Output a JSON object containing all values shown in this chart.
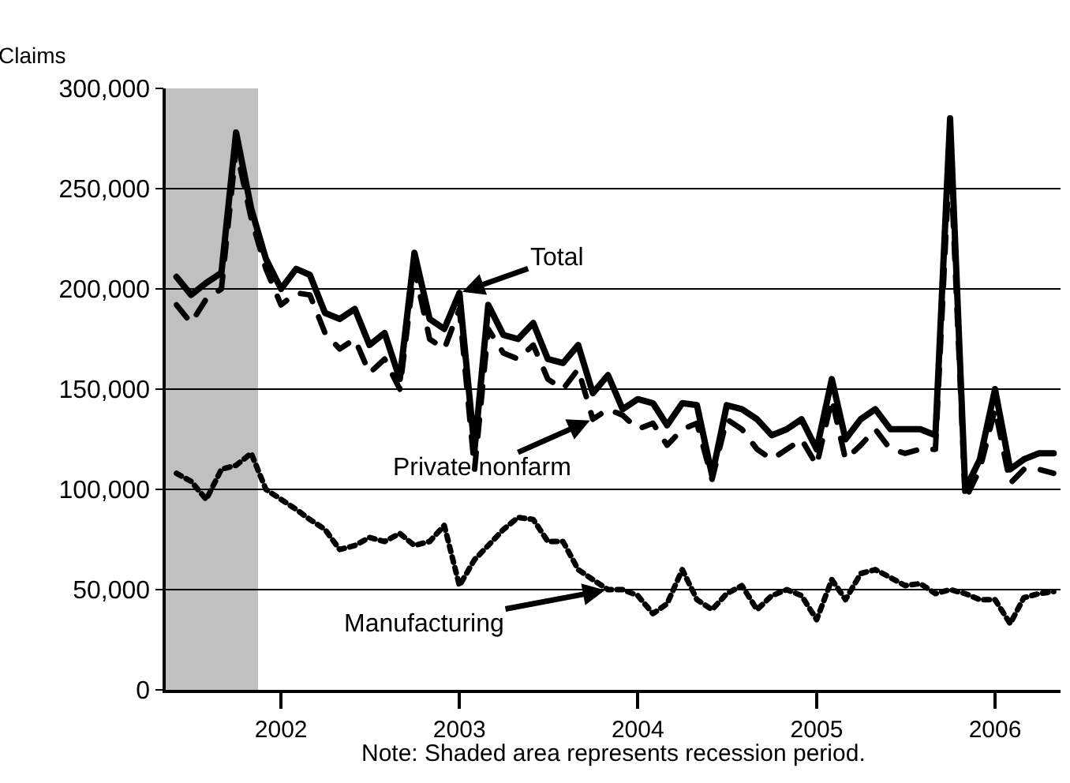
{
  "chart_data": {
    "type": "line",
    "ylabel": "Claims",
    "x": [
      "2001-06",
      "2001-07",
      "2001-08",
      "2001-09",
      "2001-10",
      "2001-11",
      "2001-12",
      "2002-01",
      "2002-02",
      "2002-03",
      "2002-04",
      "2002-05",
      "2002-06",
      "2002-07",
      "2002-08",
      "2002-09",
      "2002-10",
      "2002-11",
      "2002-12",
      "2003-01",
      "2003-02",
      "2003-03",
      "2003-04",
      "2003-05",
      "2003-06",
      "2003-07",
      "2003-08",
      "2003-09",
      "2003-10",
      "2003-11",
      "2003-12",
      "2004-01",
      "2004-02",
      "2004-03",
      "2004-04",
      "2004-05",
      "2004-06",
      "2004-07",
      "2004-08",
      "2004-09",
      "2004-10",
      "2004-11",
      "2004-12",
      "2005-01",
      "2005-02",
      "2005-03",
      "2005-04",
      "2005-05",
      "2005-06",
      "2005-07",
      "2005-08",
      "2005-09",
      "2005-10",
      "2005-11",
      "2005-12",
      "2006-01",
      "2006-02",
      "2006-03",
      "2006-04",
      "2006-05"
    ],
    "series": [
      {
        "color": "#000000",
        "line_style": "solid",
        "values": [
          206000,
          197000,
          203000,
          208000,
          278000,
          240000,
          215000,
          200000,
          210000,
          207000,
          188000,
          185000,
          190000,
          172000,
          178000,
          155000,
          218000,
          185000,
          180000,
          198000,
          120000,
          192000,
          177000,
          175000,
          183000,
          165000,
          163000,
          172000,
          148000,
          157000,
          140000,
          145000,
          143000,
          132000,
          143000,
          142000,
          107000,
          142000,
          140000,
          135000,
          127000,
          130000,
          135000,
          120000,
          155000,
          125000,
          135000,
          140000,
          130000,
          130000,
          130000,
          127000,
          285000,
          100000,
          115000,
          150000,
          110000,
          115000,
          118000,
          118000
        ]
      },
      {
        "color": "#000000",
        "line_style": "dashed",
        "values": [
          192000,
          183000,
          195000,
          200000,
          270000,
          235000,
          210000,
          192000,
          198000,
          197000,
          178000,
          170000,
          175000,
          158000,
          165000,
          150000,
          210000,
          175000,
          170000,
          190000,
          110000,
          180000,
          168000,
          165000,
          172000,
          155000,
          150000,
          160000,
          135000,
          140000,
          137000,
          130000,
          133000,
          122000,
          130000,
          133000,
          105000,
          135000,
          130000,
          120000,
          115000,
          120000,
          125000,
          112000,
          145000,
          115000,
          122000,
          130000,
          120000,
          118000,
          120000,
          120000,
          270000,
          95000,
          110000,
          140000,
          103000,
          110000,
          110000,
          108000
        ]
      },
      {
        "color": "#000000",
        "line_style": "dotted",
        "values": [
          108000,
          104000,
          95000,
          110000,
          112000,
          118000,
          100000,
          95000,
          90000,
          85000,
          80000,
          70000,
          72000,
          76000,
          74000,
          78000,
          72000,
          74000,
          82000,
          52000,
          65000,
          72000,
          80000,
          86000,
          85000,
          74000,
          74000,
          60000,
          55000,
          50000,
          50000,
          47000,
          38000,
          43000,
          60000,
          45000,
          40000,
          48000,
          52000,
          40000,
          47000,
          50000,
          47000,
          35000,
          55000,
          45000,
          58000,
          60000,
          56000,
          52000,
          53000,
          48000,
          50000,
          48000,
          45000,
          45000,
          33000,
          46000,
          48000,
          49000
        ]
      }
    ],
    "xlim": [
      "2001-05-10",
      "2006-05-15"
    ],
    "xticks": [
      {
        "value": "2002-01-01",
        "label": "2002"
      },
      {
        "value": "2003-01-01",
        "label": "2003"
      },
      {
        "value": "2004-01-01",
        "label": "2004"
      },
      {
        "value": "2005-01-01",
        "label": "2005"
      },
      {
        "value": "2006-01-01",
        "label": "2006"
      }
    ],
    "ylim": [
      0,
      300000
    ],
    "yticks": [
      {
        "value": 0,
        "label": "0"
      },
      {
        "value": 50000,
        "label": "50,000"
      },
      {
        "value": 100000,
        "label": "100,000"
      },
      {
        "value": 150000,
        "label": "150,000"
      },
      {
        "value": 200000,
        "label": "200,000"
      },
      {
        "value": 250000,
        "label": "250,000"
      },
      {
        "value": 300000,
        "label": "300,000"
      }
    ],
    "bands": [
      {
        "axis": "x",
        "from": "2001-05-10",
        "to": "2001-11-15",
        "color": "#c0c0c0"
      }
    ],
    "grid": "y",
    "marker": "none",
    "annotations": [
      {
        "text": "Total",
        "x": "2003-01",
        "y": 198000
      },
      {
        "text": "Private nonfarm",
        "x": "2003-10",
        "y": 135000
      },
      {
        "text": "Manufacturing",
        "x": "2003-11",
        "y": 50000
      },
      "Note: Shaded area represents recession period."
    ]
  }
}
